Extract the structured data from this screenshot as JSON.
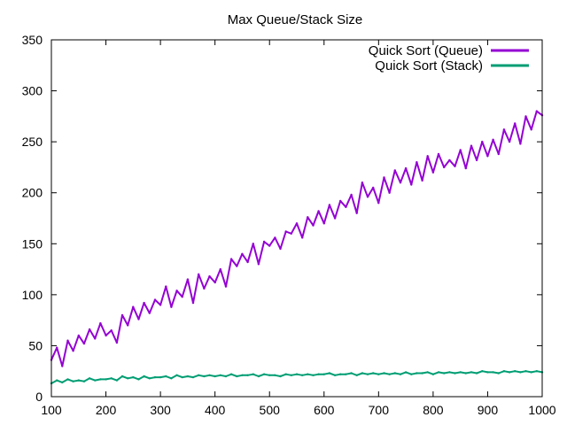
{
  "chart_data": {
    "type": "line",
    "title": "Max Queue/Stack Size",
    "xlabel": "",
    "ylabel": "",
    "xlim": [
      100,
      1000
    ],
    "ylim": [
      0,
      350
    ],
    "x_ticks": [
      "100",
      "200",
      "300",
      "400",
      "500",
      "600",
      "700",
      "800",
      "900",
      "1000"
    ],
    "y_ticks": [
      "0",
      "50",
      "100",
      "150",
      "200",
      "250",
      "300",
      "350"
    ],
    "grid": false,
    "legend_position": "top-right",
    "series": [
      {
        "name": "Quick Sort (Queue)",
        "color": "#9400d3",
        "x": [
          100,
          110,
          120,
          130,
          140,
          150,
          160,
          170,
          180,
          190,
          200,
          210,
          220,
          230,
          240,
          250,
          260,
          270,
          280,
          290,
          300,
          310,
          320,
          330,
          340,
          350,
          360,
          370,
          380,
          390,
          400,
          410,
          420,
          430,
          440,
          450,
          460,
          470,
          480,
          490,
          500,
          510,
          520,
          530,
          540,
          550,
          560,
          570,
          580,
          590,
          600,
          610,
          620,
          630,
          640,
          650,
          660,
          670,
          680,
          690,
          700,
          710,
          720,
          730,
          740,
          750,
          760,
          770,
          780,
          790,
          800,
          810,
          820,
          830,
          840,
          850,
          860,
          870,
          880,
          890,
          900,
          910,
          920,
          930,
          940,
          950,
          960,
          970,
          980,
          990,
          1000
        ],
        "values": [
          36,
          48,
          30,
          55,
          45,
          60,
          52,
          66,
          57,
          72,
          60,
          65,
          53,
          80,
          70,
          88,
          76,
          92,
          82,
          95,
          90,
          108,
          88,
          104,
          98,
          115,
          92,
          120,
          106,
          118,
          112,
          125,
          108,
          135,
          128,
          140,
          132,
          150,
          130,
          152,
          148,
          156,
          145,
          162,
          160,
          170,
          156,
          176,
          168,
          182,
          170,
          188,
          175,
          192,
          186,
          198,
          180,
          210,
          196,
          205,
          190,
          215,
          200,
          222,
          210,
          224,
          208,
          230,
          212,
          236,
          220,
          238,
          225,
          232,
          226,
          242,
          224,
          246,
          232,
          250,
          236,
          252,
          238,
          262,
          250,
          268,
          248,
          275,
          262,
          280,
          276
        ]
      },
      {
        "name": "Quick Sort (Stack)",
        "color": "#009e73",
        "x": [
          100,
          110,
          120,
          130,
          140,
          150,
          160,
          170,
          180,
          190,
          200,
          210,
          220,
          230,
          240,
          250,
          260,
          270,
          280,
          290,
          300,
          310,
          320,
          330,
          340,
          350,
          360,
          370,
          380,
          390,
          400,
          410,
          420,
          430,
          440,
          450,
          460,
          470,
          480,
          490,
          500,
          510,
          520,
          530,
          540,
          550,
          560,
          570,
          580,
          590,
          600,
          610,
          620,
          630,
          640,
          650,
          660,
          670,
          680,
          690,
          700,
          710,
          720,
          730,
          740,
          750,
          760,
          770,
          780,
          790,
          800,
          810,
          820,
          830,
          840,
          850,
          860,
          870,
          880,
          890,
          900,
          910,
          920,
          930,
          940,
          950,
          960,
          970,
          980,
          990,
          1000
        ],
        "values": [
          13,
          16,
          14,
          17,
          15,
          16,
          15,
          18,
          16,
          17,
          17,
          18,
          16,
          20,
          18,
          19,
          17,
          20,
          18,
          19,
          19,
          20,
          18,
          21,
          19,
          20,
          19,
          21,
          20,
          21,
          20,
          21,
          20,
          22,
          20,
          21,
          21,
          22,
          20,
          22,
          21,
          21,
          20,
          22,
          21,
          22,
          21,
          22,
          21,
          22,
          22,
          23,
          21,
          22,
          22,
          23,
          21,
          23,
          22,
          23,
          22,
          23,
          22,
          23,
          22,
          24,
          22,
          23,
          23,
          24,
          22,
          24,
          23,
          24,
          23,
          24,
          23,
          24,
          23,
          25,
          24,
          24,
          23,
          25,
          24,
          25,
          24,
          25,
          24,
          25,
          24
        ]
      }
    ]
  }
}
